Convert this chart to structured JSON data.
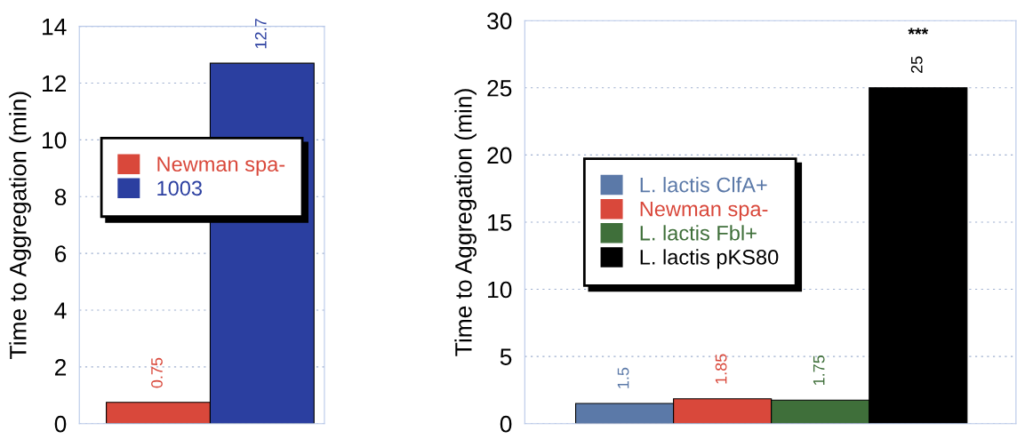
{
  "chart_data": [
    {
      "type": "bar",
      "ylabel": "Time to Aggregation (min)",
      "categories": [
        null,
        null
      ],
      "ylim": [
        0,
        14
      ],
      "yticks": [
        0,
        2,
        4,
        6,
        8,
        10,
        12,
        14
      ],
      "grid": "y",
      "legend": "center",
      "data_labels": true,
      "series": [
        {
          "name": "Newman spa-",
          "color": "#d9483b",
          "values": [
            0.75,
            null
          ]
        },
        {
          "name": "1003",
          "color": "#2b3fa0",
          "values": [
            null,
            12.7
          ]
        }
      ]
    },
    {
      "type": "bar",
      "ylabel": "Time to Aggregation (min)",
      "categories": [
        null,
        null,
        null,
        null
      ],
      "ylim": [
        0,
        30
      ],
      "yticks": [
        0,
        5,
        10,
        15,
        20,
        25,
        30
      ],
      "grid": "y",
      "legend": "center left",
      "data_labels": true,
      "annotations": [
        "***"
      ],
      "series": [
        {
          "name": "L. lactis ClfA+",
          "color": "#5b79a8",
          "values": [
            1.5,
            null,
            null,
            null
          ]
        },
        {
          "name": "Newman spa-",
          "color": "#d9483b",
          "values": [
            null,
            1.85,
            null,
            null
          ]
        },
        {
          "name": "L. lactis Fbl+",
          "color": "#3f6f3a",
          "values": [
            null,
            null,
            1.75,
            null
          ]
        },
        {
          "name": "L. lactis pKS80",
          "color": "#000000",
          "values": [
            null,
            null,
            null,
            25
          ]
        }
      ]
    }
  ]
}
